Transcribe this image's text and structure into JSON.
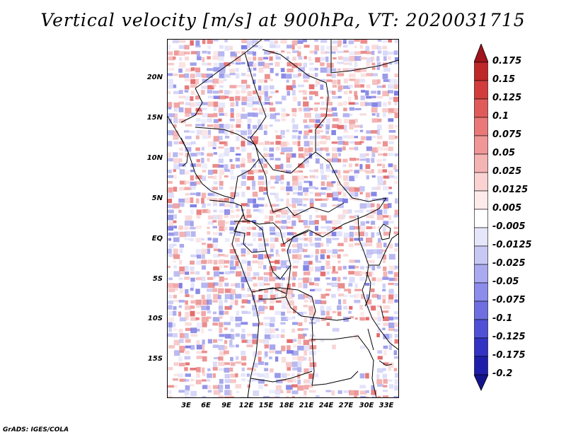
{
  "title": "Vertical velocity [m/s] at 900hPa, VT: 2020031715",
  "map": {
    "lat_labels": [
      "20N",
      "15N",
      "10N",
      "5N",
      "EQ",
      "5S",
      "10S",
      "15S"
    ],
    "lon_labels": [
      "3E",
      "6E",
      "9E",
      "12E",
      "15E",
      "18E",
      "21E",
      "24E",
      "27E",
      "30E",
      "33E"
    ]
  },
  "colorbar": {
    "levels": [
      "0.175",
      "0.15",
      "0.125",
      "0.1",
      "0.075",
      "0.05",
      "0.025",
      "0.0125",
      "0.005",
      "-0.005",
      "-0.0125",
      "-0.025",
      "-0.05",
      "-0.075",
      "-0.1",
      "-0.125",
      "-0.175",
      "-0.2"
    ],
    "colors": [
      "#a0141e",
      "#be2828",
      "#d23c3c",
      "#e15a5a",
      "#eb7878",
      "#f09696",
      "#f5b4b4",
      "#fad2d2",
      "#fdebeb",
      "#ffffff",
      "#e6e6fa",
      "#c8c8f5",
      "#aaaaf0",
      "#8c8ceb",
      "#6e6ee1",
      "#5050d7",
      "#3232c3",
      "#1e1eaa",
      "#14148c"
    ]
  },
  "credit": "GrADS: IGES/COLA"
}
